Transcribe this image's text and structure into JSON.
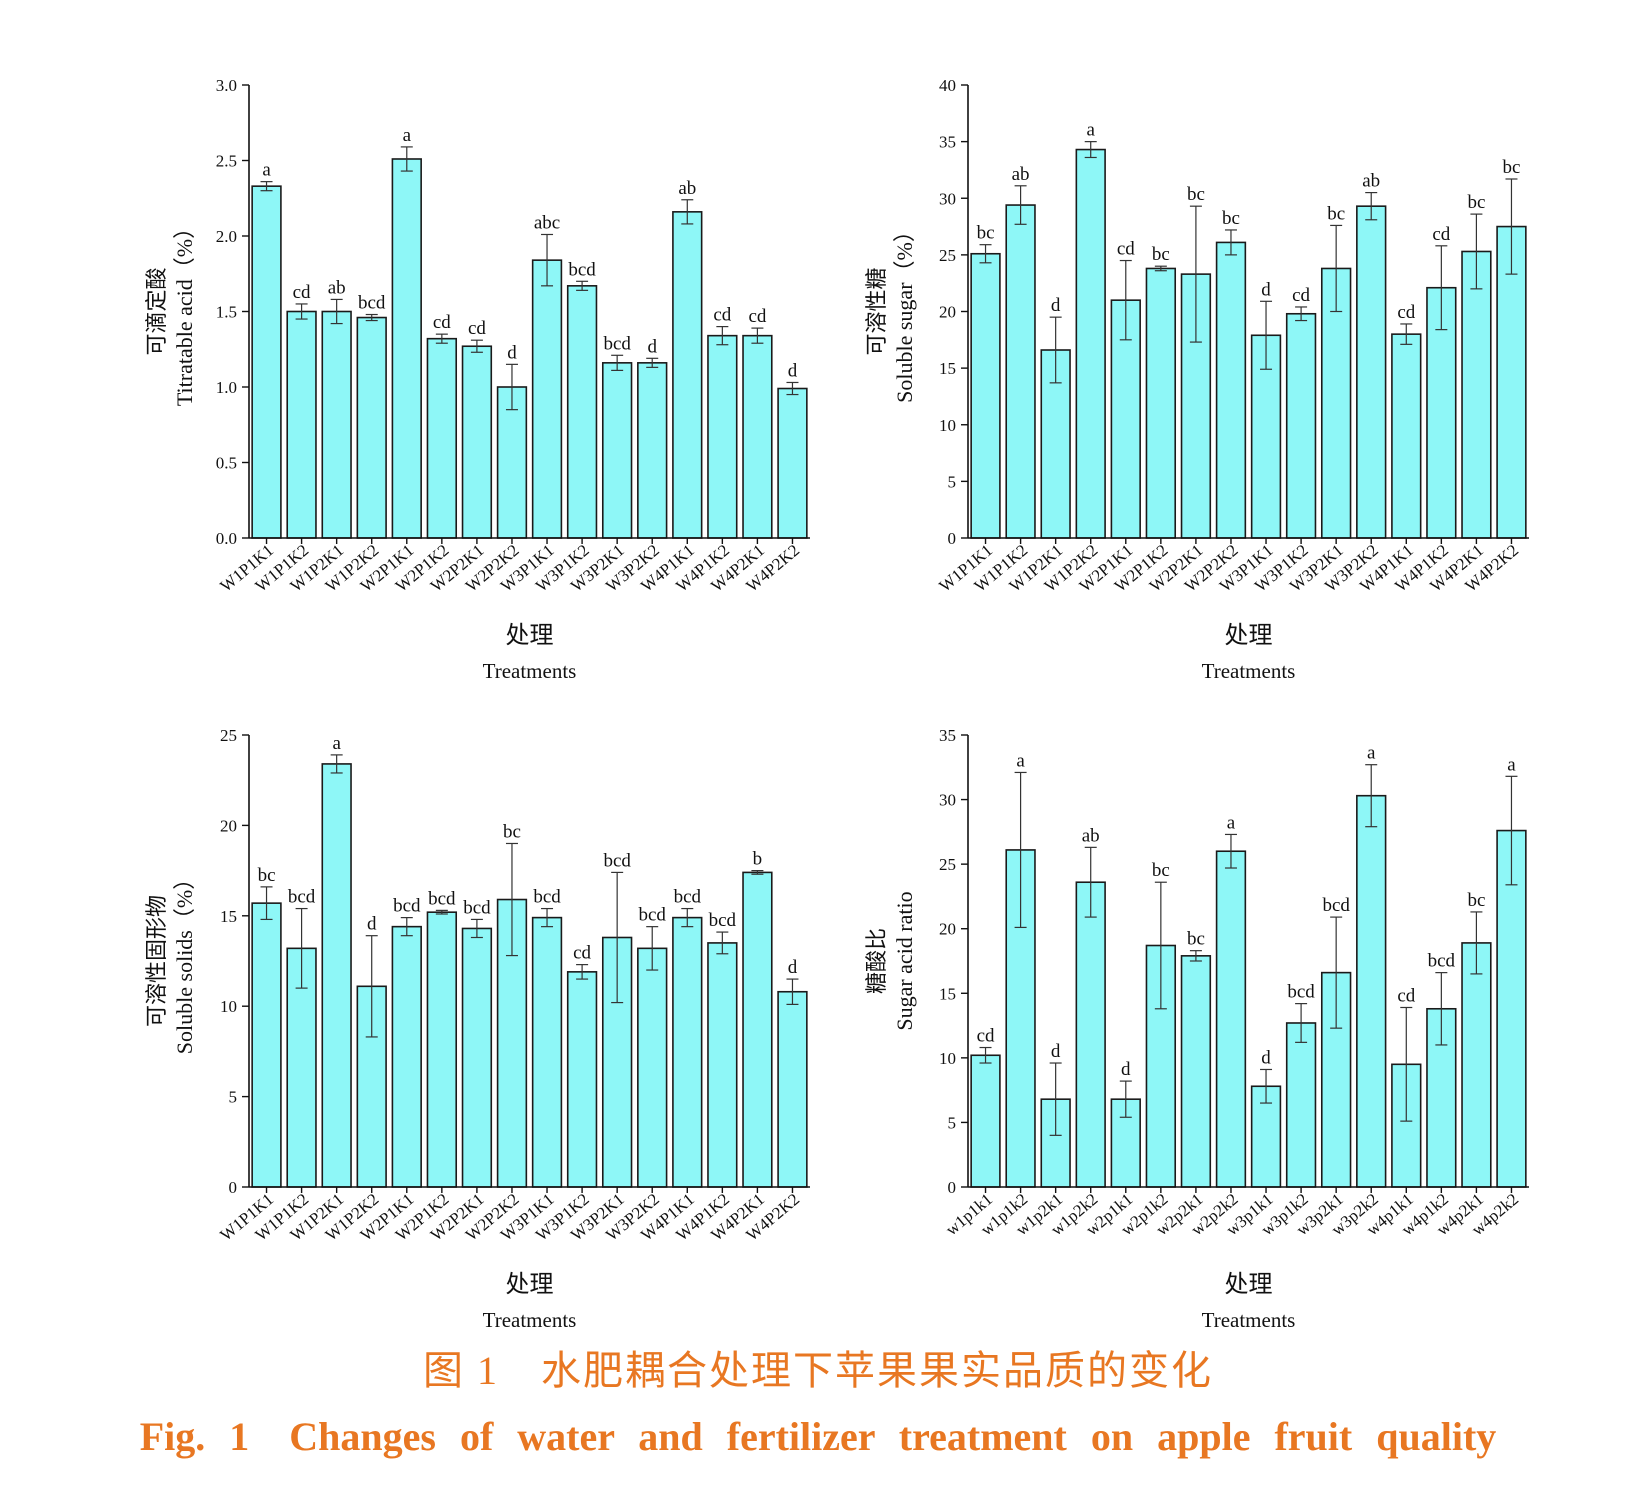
{
  "caption": {
    "cn": "图 1　水肥耦合处理下苹果果实品质的变化",
    "en": "Fig. 1　Changes of water and fertilizer treatment on apple fruit quality"
  },
  "colors": {
    "bar_fill": "#8ef7f7",
    "bar_stroke": "#1a1a1a",
    "caption": "#e87722"
  },
  "chart_data": [
    {
      "type": "bar",
      "ylabel_cn": "可滴定酸",
      "ylabel": "Titratable acid（%）",
      "xlabel_cn": "处理",
      "xlabel": "Treatments",
      "ylim": [
        0,
        3.0
      ],
      "yticks": [
        "0.0",
        "0.5",
        "1.0",
        "1.5",
        "2.0",
        "2.5",
        "3.0"
      ],
      "categories": [
        "W1P1K1",
        "W1P1K2",
        "W1P2K1",
        "W1P2K2",
        "W2P1K1",
        "W2P1K2",
        "W2P2K1",
        "W2P2K2",
        "W3P1K1",
        "W3P1K2",
        "W3P2K1",
        "W3P2K2",
        "W4P1K1",
        "W4P1K2",
        "W4P2K1",
        "W4P2K2"
      ],
      "values": [
        2.33,
        1.5,
        1.5,
        1.46,
        2.51,
        1.32,
        1.27,
        1.0,
        1.84,
        1.67,
        1.16,
        1.16,
        2.16,
        1.34,
        1.34,
        0.99
      ],
      "errors": [
        0.03,
        0.05,
        0.08,
        0.02,
        0.08,
        0.03,
        0.04,
        0.15,
        0.17,
        0.03,
        0.05,
        0.03,
        0.08,
        0.06,
        0.05,
        0.04
      ],
      "letters": [
        "a",
        "cd",
        "ab",
        "bcd",
        "a",
        "cd",
        "cd",
        "d",
        "abc",
        "bcd",
        "bcd",
        "d",
        "ab",
        "cd",
        "cd",
        "d"
      ]
    },
    {
      "type": "bar",
      "ylabel_cn": "可溶性糖",
      "ylabel": "Soluble sugar（%）",
      "xlabel_cn": "处理",
      "xlabel": "Treatments",
      "ylim": [
        0,
        40
      ],
      "yticks": [
        "0",
        "5",
        "10",
        "15",
        "20",
        "25",
        "30",
        "35",
        "40"
      ],
      "categories": [
        "W1P1K1",
        "W1P1K2",
        "W1P2K1",
        "W1P2K2",
        "W2P1K1",
        "W2P1K2",
        "W2P2K1",
        "W2P2K2",
        "W3P1K1",
        "W3P1K2",
        "W3P2K1",
        "W3P2K2",
        "W4P1K1",
        "W4P1K2",
        "W4P2K1",
        "W4P2K2"
      ],
      "values": [
        25.1,
        29.4,
        16.6,
        34.3,
        21.0,
        23.8,
        23.3,
        26.1,
        17.9,
        19.8,
        23.8,
        29.3,
        18.0,
        22.1,
        25.3,
        27.5
      ],
      "errors": [
        0.8,
        1.7,
        2.9,
        0.7,
        3.5,
        0.2,
        6.0,
        1.1,
        3.0,
        0.6,
        3.8,
        1.2,
        0.9,
        3.7,
        3.3,
        4.2
      ],
      "letters": [
        "bc",
        "ab",
        "d",
        "a",
        "cd",
        "bc",
        "bc",
        "bc",
        "d",
        "cd",
        "bc",
        "ab",
        "cd",
        "cd",
        "bc",
        "bc"
      ]
    },
    {
      "type": "bar",
      "ylabel_cn": "可溶性固形物",
      "ylabel": "Soluble solids（%）",
      "xlabel_cn": "处理",
      "xlabel": "Treatments",
      "ylim": [
        0,
        25
      ],
      "yticks": [
        "0",
        "5",
        "10",
        "15",
        "20",
        "25"
      ],
      "categories": [
        "W1P1K1",
        "W1P1K2",
        "W1P2K1",
        "W1P2K2",
        "W2P1K1",
        "W2P1K2",
        "W2P2K1",
        "W2P2K2",
        "W3P1K1",
        "W3P1K2",
        "W3P2K1",
        "W3P2K2",
        "W4P1K1",
        "W4P1K2",
        "W4P2K1",
        "W4P2K2"
      ],
      "values": [
        15.7,
        13.2,
        23.4,
        11.1,
        14.4,
        15.2,
        14.3,
        15.9,
        14.9,
        11.9,
        13.8,
        13.2,
        14.9,
        13.5,
        17.4,
        10.8
      ],
      "errors": [
        0.9,
        2.2,
        0.5,
        2.8,
        0.5,
        0.1,
        0.5,
        3.1,
        0.5,
        0.4,
        3.6,
        1.2,
        0.5,
        0.6,
        0.1,
        0.7
      ],
      "letters": [
        "bc",
        "bcd",
        "a",
        "d",
        "bcd",
        "bcd",
        "bcd",
        "bc",
        "bcd",
        "cd",
        "bcd",
        "bcd",
        "bcd",
        "bcd",
        "b",
        "d"
      ]
    },
    {
      "type": "bar",
      "ylabel_cn": "糖酸比",
      "ylabel": "Sugar acid ratio",
      "xlabel_cn": "处理",
      "xlabel": "Treatments",
      "ylim": [
        0,
        35
      ],
      "yticks": [
        "0",
        "5",
        "10",
        "15",
        "20",
        "25",
        "30",
        "35"
      ],
      "categories": [
        "w1p1k1",
        "w1p1k2",
        "w1p2k1",
        "w1p2k2",
        "w2p1k1",
        "w2p1k2",
        "w2p2k1",
        "w2p2k2",
        "w3p1k1",
        "w3p1k2",
        "w3p2k1",
        "w3p2k2",
        "w4p1k1",
        "w4p1k2",
        "w4p2k1",
        "w4p2k2"
      ],
      "values": [
        10.2,
        26.1,
        6.8,
        23.6,
        6.8,
        18.7,
        17.9,
        26.0,
        7.8,
        12.7,
        16.6,
        30.3,
        9.5,
        13.8,
        18.9,
        27.6
      ],
      "errors": [
        0.6,
        6.0,
        2.8,
        2.7,
        1.4,
        4.9,
        0.4,
        1.3,
        1.3,
        1.5,
        4.3,
        2.4,
        4.4,
        2.8,
        2.4,
        4.2
      ],
      "letters": [
        "cd",
        "a",
        "d",
        "ab",
        "d",
        "bc",
        "bc",
        "a",
        "d",
        "bcd",
        "bcd",
        "a",
        "cd",
        "bcd",
        "bc",
        "a"
      ]
    }
  ]
}
